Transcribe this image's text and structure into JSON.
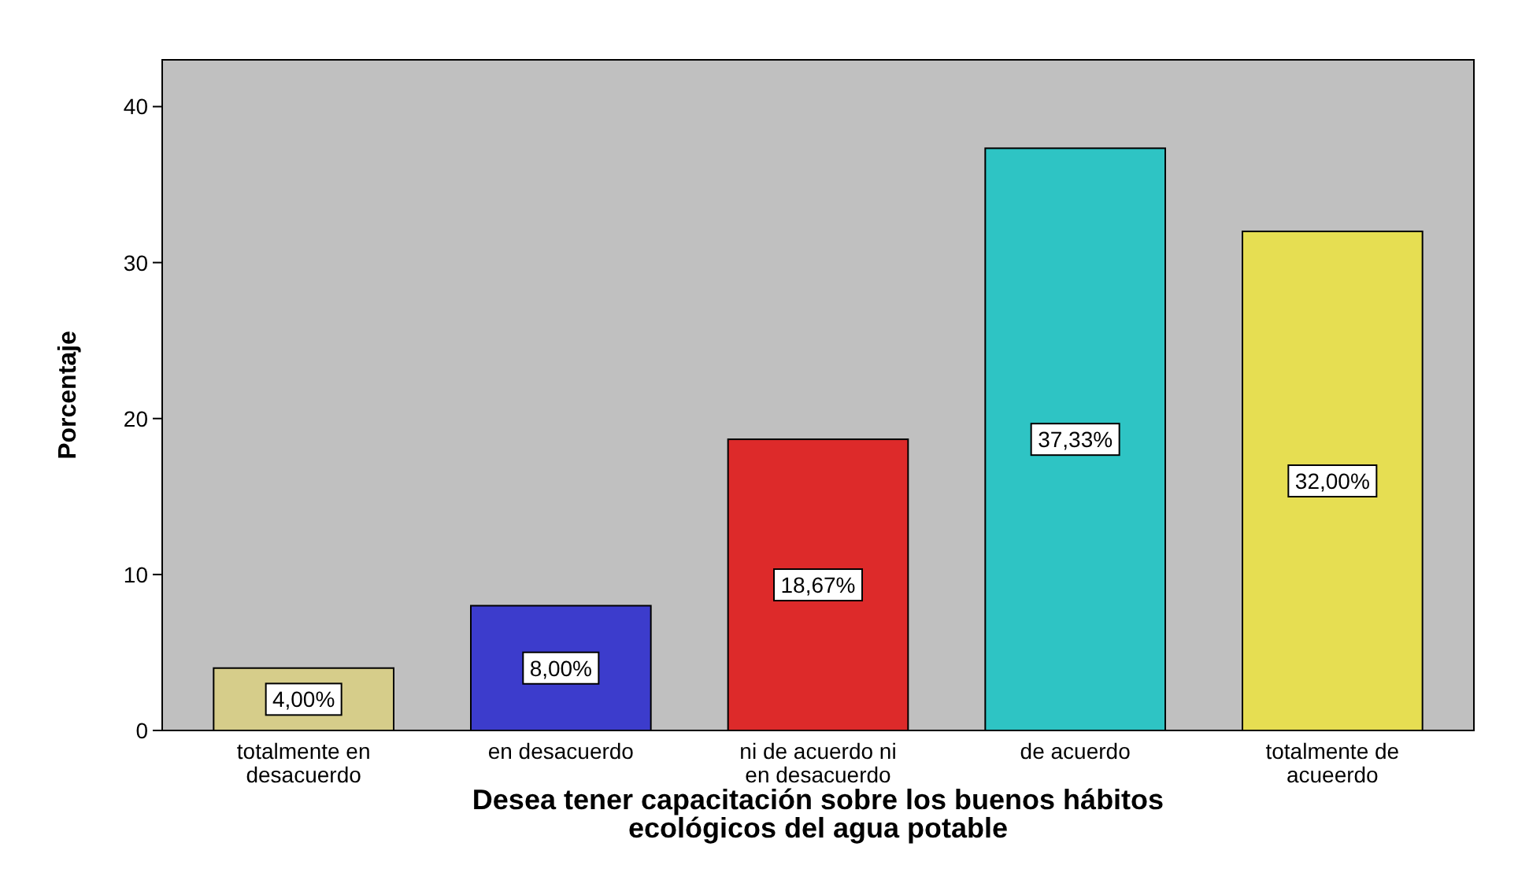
{
  "chart_data": {
    "type": "bar",
    "xlabel": "Desea tener capacitación sobre los buenos hábitos ecológicos del agua potable",
    "ylabel": "Porcentaje",
    "categories": [
      "totalmente en desacuerdo",
      "en desacuerdo",
      "ni de acuerdo ni en desacuerdo",
      "de acuerdo",
      "totalmente de acueerdo"
    ],
    "values": [
      4,
      8,
      18.67,
      37.33,
      32
    ],
    "colors": [
      "#d6cd8a",
      "#3c3ccc",
      "#dd2a2a",
      "#2ec4c4",
      "#e6de52"
    ],
    "value_labels": [
      "4,00%",
      "8,00%",
      "18,67%",
      "37,33%",
      "32,00%"
    ],
    "ylim": [
      0,
      43
    ],
    "yticks": [
      0,
      10,
      20,
      30,
      40
    ],
    "grid": false
  }
}
